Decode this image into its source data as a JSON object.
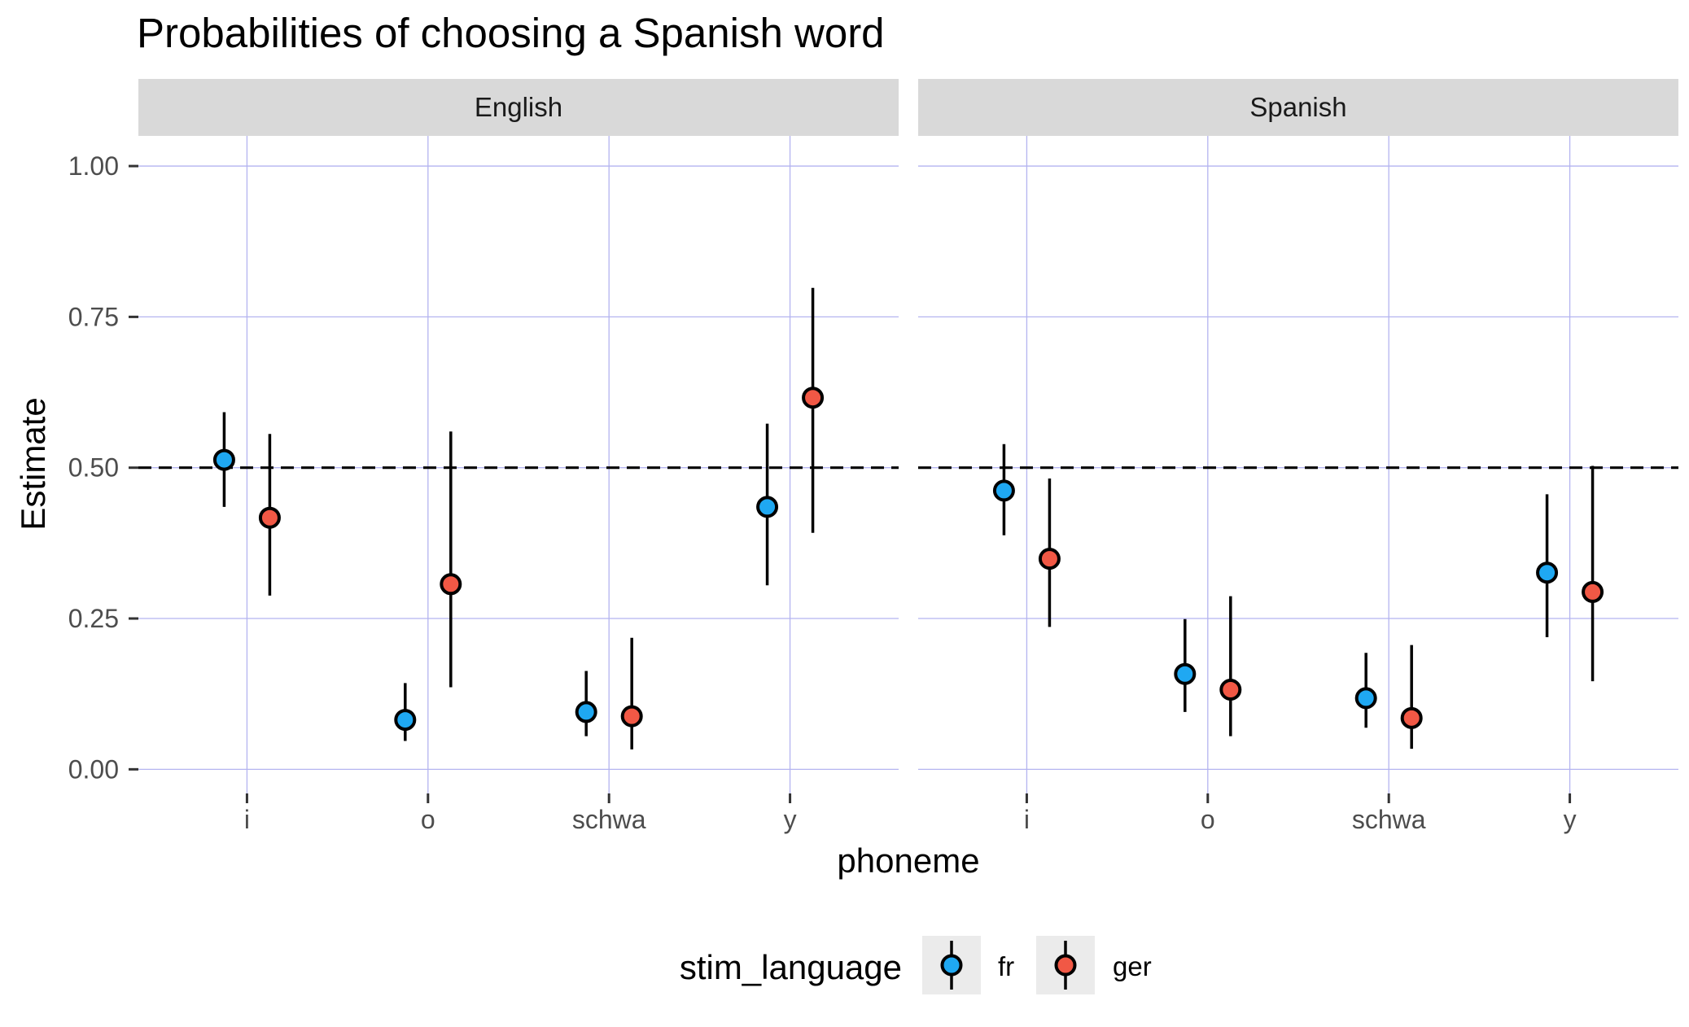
{
  "chart_data": {
    "type": "scatter",
    "title": "Probabilities of choosing a Spanish word",
    "xlabel": "phoneme",
    "ylabel": "Estimate",
    "categories": [
      "i",
      "o",
      "schwa",
      "y"
    ],
    "ylim": [
      -0.04,
      1.05
    ],
    "yticks": [
      "0.00",
      "0.25",
      "0.50",
      "0.75",
      "1.00"
    ],
    "reference_line": {
      "y": 0.5,
      "style": "dashed"
    },
    "grid": true,
    "legend": {
      "title": "stim_language",
      "position": "bottom"
    },
    "series_colors": {
      "fr": "#1fa8f2",
      "ger": "#f15845"
    },
    "facets": [
      {
        "label": "English",
        "series": [
          {
            "name": "fr",
            "estimate": [
              0.513,
              0.082,
              0.095,
              0.435
            ],
            "lower": [
              0.435,
              0.047,
              0.055,
              0.305
            ],
            "upper": [
              0.592,
              0.143,
              0.163,
              0.573
            ]
          },
          {
            "name": "ger",
            "estimate": [
              0.417,
              0.307,
              0.088,
              0.616
            ],
            "lower": [
              0.288,
              0.136,
              0.033,
              0.392
            ],
            "upper": [
              0.556,
              0.56,
              0.218,
              0.798
            ]
          }
        ]
      },
      {
        "label": "Spanish",
        "series": [
          {
            "name": "fr",
            "estimate": [
              0.462,
              0.158,
              0.118,
              0.326
            ],
            "lower": [
              0.388,
              0.095,
              0.069,
              0.219
            ],
            "upper": [
              0.539,
              0.249,
              0.193,
              0.456
            ]
          },
          {
            "name": "ger",
            "estimate": [
              0.349,
              0.132,
              0.085,
              0.294
            ],
            "lower": [
              0.236,
              0.055,
              0.034,
              0.146
            ],
            "upper": [
              0.482,
              0.287,
              0.206,
              0.503
            ]
          }
        ]
      }
    ]
  }
}
